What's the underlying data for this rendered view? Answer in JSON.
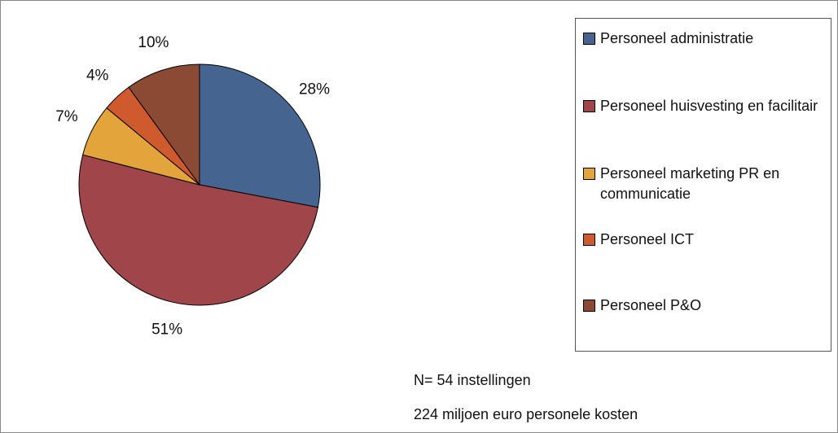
{
  "chart_data": {
    "type": "pie",
    "categories": [
      "Personeel administratie",
      "Personeel huisvesting en facilitair",
      "Personeel marketing PR en communicatie",
      "Personeel ICT",
      "Personeel P&O"
    ],
    "values": [
      28,
      51,
      7,
      4,
      10
    ],
    "value_labels": [
      "28%",
      "51%",
      "7%",
      "4%",
      "10%"
    ],
    "colors": [
      "#456590",
      "#a0464a",
      "#e2a43b",
      "#cf5a2e",
      "#8b4a34"
    ],
    "legend": "right",
    "annotations": [
      "N= 54 instellingen",
      "224 miljoen euro personele kosten"
    ]
  }
}
